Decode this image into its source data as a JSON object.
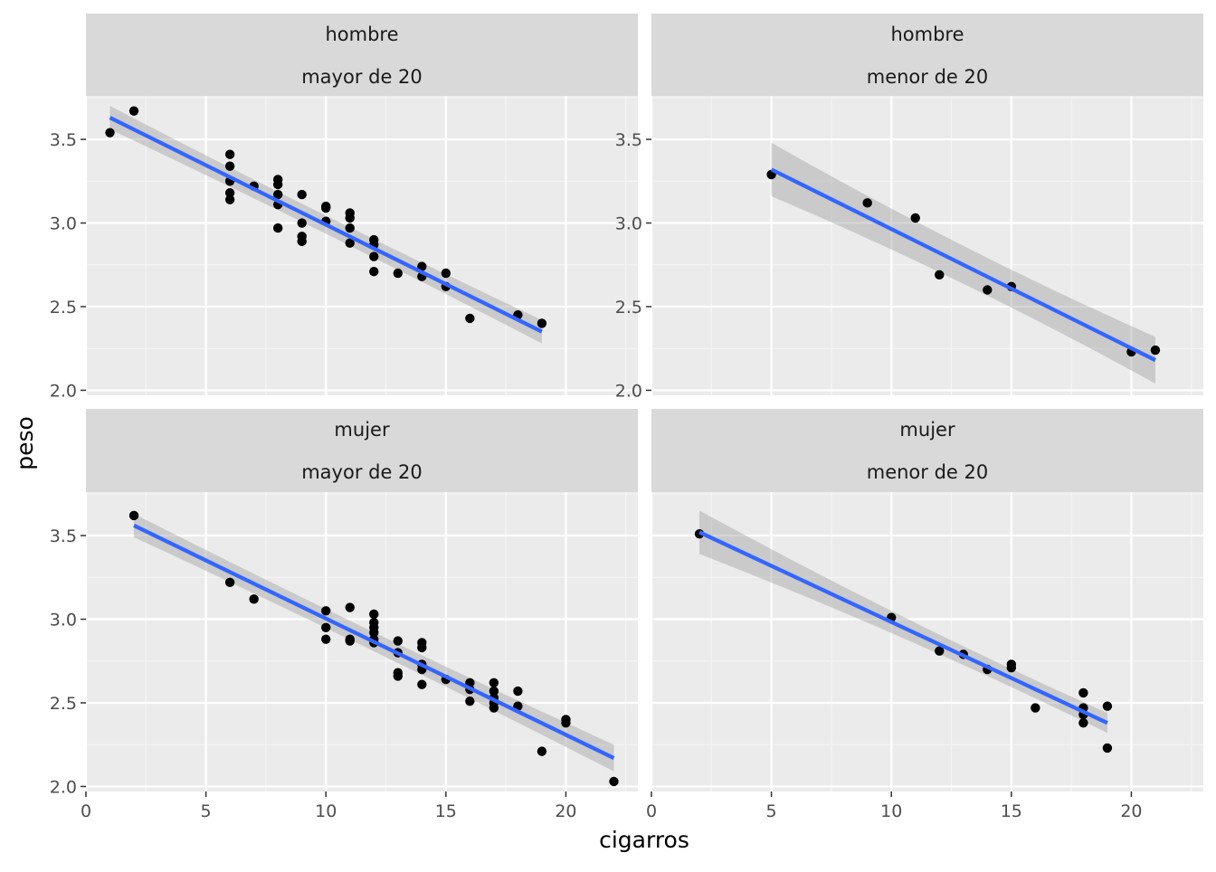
{
  "x_axis_title": "cigarros",
  "y_axis_title": "peso",
  "colors": {
    "panel_bg": "#EBEBEB",
    "strip_bg": "#D9D9D9",
    "grid_major": "#FFFFFF",
    "grid_minor": "#F5F5F5",
    "point": "#000000",
    "fit_line": "#3366FF",
    "ribbon": "#999999"
  },
  "chart_data": [
    {
      "type": "scatter",
      "panel": "hombre / mayor de 20",
      "strip": [
        "hombre",
        "mayor de 20"
      ],
      "xlim": [
        0,
        23
      ],
      "ylim": [
        1.97,
        3.76
      ],
      "x_ticks": [
        0,
        5,
        10,
        15,
        20
      ],
      "y_ticks": [
        2.0,
        2.5,
        3.0,
        3.5
      ],
      "y_tick_labels": [
        "2.0",
        "2.5",
        "3.0",
        "3.5"
      ],
      "points": [
        [
          1,
          3.54
        ],
        [
          2,
          3.67
        ],
        [
          6,
          3.41
        ],
        [
          6,
          3.34
        ],
        [
          6,
          3.25
        ],
        [
          6,
          3.18
        ],
        [
          6,
          3.14
        ],
        [
          7,
          3.22
        ],
        [
          8,
          3.26
        ],
        [
          8,
          3.23
        ],
        [
          8,
          3.17
        ],
        [
          8,
          3.11
        ],
        [
          8,
          2.97
        ],
        [
          9,
          3.17
        ],
        [
          9,
          3.0
        ],
        [
          9,
          2.92
        ],
        [
          9,
          2.89
        ],
        [
          10,
          3.1
        ],
        [
          10,
          3.09
        ],
        [
          10,
          3.01
        ],
        [
          11,
          3.06
        ],
        [
          11,
          3.03
        ],
        [
          11,
          2.97
        ],
        [
          11,
          2.88
        ],
        [
          12,
          2.9
        ],
        [
          12,
          2.87
        ],
        [
          12,
          2.8
        ],
        [
          12,
          2.71
        ],
        [
          13,
          2.7
        ],
        [
          14,
          2.74
        ],
        [
          14,
          2.68
        ],
        [
          15,
          2.7
        ],
        [
          15,
          2.62
        ],
        [
          16,
          2.43
        ],
        [
          18,
          2.45
        ],
        [
          19,
          2.4
        ]
      ],
      "fit": {
        "x": [
          1,
          19
        ],
        "y": [
          3.63,
          2.35
        ],
        "se": [
          0.07,
          0.07
        ]
      }
    },
    {
      "type": "scatter",
      "panel": "hombre / menor de 20",
      "strip": [
        "hombre",
        "menor de 20"
      ],
      "xlim": [
        0,
        23
      ],
      "ylim": [
        1.97,
        3.76
      ],
      "x_ticks": [
        0,
        5,
        10,
        15,
        20
      ],
      "y_ticks": [
        2.0,
        2.5,
        3.0,
        3.5
      ],
      "y_tick_labels": [
        "2.0",
        "2.5",
        "3.0",
        "3.5"
      ],
      "points": [
        [
          5,
          3.29
        ],
        [
          9,
          3.12
        ],
        [
          11,
          3.03
        ],
        [
          12,
          2.69
        ],
        [
          14,
          2.6
        ],
        [
          15,
          2.62
        ],
        [
          20,
          2.23
        ],
        [
          21,
          2.24
        ]
      ],
      "fit": {
        "x": [
          5,
          21
        ],
        "y": [
          3.32,
          2.18
        ],
        "se": [
          0.16,
          0.14
        ]
      }
    },
    {
      "type": "scatter",
      "panel": "mujer / mayor de 20",
      "strip": [
        "mujer",
        "mayor de 20"
      ],
      "xlim": [
        0,
        23
      ],
      "ylim": [
        1.97,
        3.76
      ],
      "x_ticks": [
        0,
        5,
        10,
        15,
        20
      ],
      "x_tick_labels": [
        "0",
        "5",
        "10",
        "15",
        "20"
      ],
      "y_ticks": [
        2.0,
        2.5,
        3.0,
        3.5
      ],
      "y_tick_labels": [
        "2.0",
        "2.5",
        "3.0",
        "3.5"
      ],
      "points": [
        [
          2,
          3.62
        ],
        [
          6,
          3.22
        ],
        [
          7,
          3.12
        ],
        [
          10,
          3.05
        ],
        [
          10,
          2.95
        ],
        [
          10,
          2.88
        ],
        [
          11,
          3.07
        ],
        [
          11,
          2.88
        ],
        [
          11,
          2.87
        ],
        [
          12,
          3.03
        ],
        [
          12,
          2.98
        ],
        [
          12,
          2.95
        ],
        [
          12,
          2.92
        ],
        [
          12,
          2.88
        ],
        [
          12,
          2.86
        ],
        [
          13,
          2.87
        ],
        [
          13,
          2.8
        ],
        [
          13,
          2.68
        ],
        [
          13,
          2.66
        ],
        [
          14,
          2.86
        ],
        [
          14,
          2.83
        ],
        [
          14,
          2.73
        ],
        [
          14,
          2.7
        ],
        [
          14,
          2.61
        ],
        [
          15,
          2.64
        ],
        [
          16,
          2.62
        ],
        [
          16,
          2.58
        ],
        [
          16,
          2.51
        ],
        [
          17,
          2.62
        ],
        [
          17,
          2.57
        ],
        [
          17,
          2.53
        ],
        [
          17,
          2.5
        ],
        [
          17,
          2.47
        ],
        [
          18,
          2.57
        ],
        [
          18,
          2.48
        ],
        [
          19,
          2.21
        ],
        [
          20,
          2.4
        ],
        [
          20,
          2.38
        ],
        [
          22,
          2.03
        ]
      ],
      "fit": {
        "x": [
          2,
          22
        ],
        "y": [
          3.56,
          2.17
        ],
        "se": [
          0.07,
          0.08
        ]
      }
    },
    {
      "type": "scatter",
      "panel": "mujer / menor de 20",
      "strip": [
        "mujer",
        "menor de 20"
      ],
      "xlim": [
        0,
        23
      ],
      "ylim": [
        1.97,
        3.76
      ],
      "x_ticks": [
        0,
        5,
        10,
        15,
        20
      ],
      "x_tick_labels": [
        "0",
        "5",
        "10",
        "15",
        "20"
      ],
      "y_ticks": [
        2.0,
        2.5,
        3.0,
        3.5
      ],
      "points": [
        [
          2,
          3.51
        ],
        [
          10,
          3.01
        ],
        [
          12,
          2.81
        ],
        [
          13,
          2.79
        ],
        [
          14,
          2.7
        ],
        [
          15,
          2.73
        ],
        [
          15,
          2.71
        ],
        [
          16,
          2.47
        ],
        [
          18,
          2.56
        ],
        [
          18,
          2.47
        ],
        [
          18,
          2.43
        ],
        [
          18,
          2.38
        ],
        [
          19,
          2.48
        ],
        [
          19,
          2.23
        ]
      ],
      "fit": {
        "x": [
          2,
          19
        ],
        "y": [
          3.52,
          2.38
        ],
        "se": [
          0.13,
          0.06
        ]
      }
    }
  ]
}
